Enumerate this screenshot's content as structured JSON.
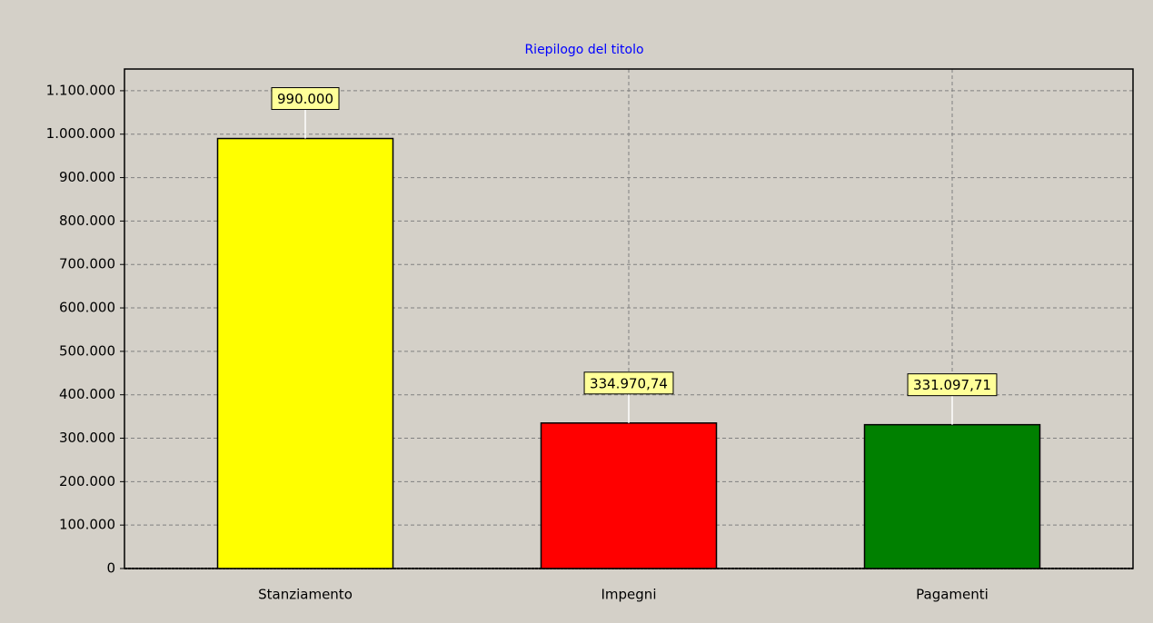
{
  "chart_data": {
    "type": "bar",
    "title": "Riepilogo del titolo",
    "categories": [
      "Stanziamento",
      "Impegni",
      "Pagamenti"
    ],
    "values": [
      990000,
      334970.74,
      331097.71
    ],
    "value_labels": [
      "990.000",
      "334.970,74",
      "331.097,71"
    ],
    "colors": [
      "#ffff00",
      "#ff0000",
      "#008000"
    ],
    "ylim": [
      0,
      1150000
    ],
    "yticks": [
      0,
      {
        "value": 100000,
        "label": "100.000"
      },
      {
        "value": 200000,
        "label": "200.000"
      },
      {
        "value": 300000,
        "label": "300.000"
      },
      {
        "value": 400000,
        "label": "400.000"
      },
      {
        "value": 500000,
        "label": "500.000"
      },
      {
        "value": 600000,
        "label": "600.000"
      },
      {
        "value": 700000,
        "label": "700.000"
      },
      {
        "value": 800000,
        "label": "800.000"
      },
      {
        "value": 900000,
        "label": "900.000"
      },
      {
        "value": 1000000,
        "label": "1.000.000"
      },
      {
        "value": 1100000,
        "label": "1.100.000"
      }
    ],
    "grid": true
  }
}
